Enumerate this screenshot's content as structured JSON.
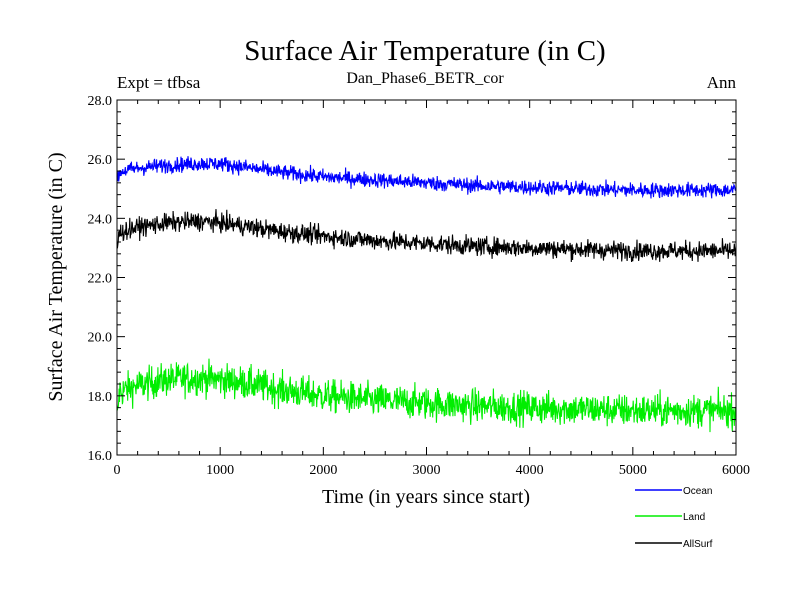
{
  "chart_data": {
    "type": "line",
    "title": "Surface Air Temperature (in C)",
    "subtitle": "Dan_Phase6_BETR_cor",
    "left_annotation": "Expt = tfbsa",
    "right_annotation": "Ann",
    "xlabel": "Time (in years since start)",
    "ylabel": "Surface Air Temperature (in C)",
    "xlim": [
      0,
      6000
    ],
    "ylim": [
      16.0,
      28.0
    ],
    "x_ticks": [
      0,
      1000,
      2000,
      3000,
      4000,
      5000,
      6000
    ],
    "x_tick_labels": [
      "0",
      "1000",
      "2000",
      "3000",
      "4000",
      "5000",
      "6000"
    ],
    "y_ticks": [
      16.0,
      18.0,
      20.0,
      22.0,
      24.0,
      26.0,
      28.0
    ],
    "y_tick_labels": [
      "16.0",
      "18.0",
      "20.0",
      "22.0",
      "24.0",
      "26.0",
      "28.0"
    ],
    "grid": false,
    "legend_position": "bottom-right",
    "noise_amplitude_note": "annual values with interannual variability around trend",
    "series": [
      {
        "name": "Ocean",
        "color": "#0000ff",
        "noise": 0.13,
        "trend_x": [
          0,
          200,
          500,
          800,
          1000,
          1300,
          1600,
          2000,
          2500,
          3000,
          3500,
          4000,
          4500,
          5000,
          5500,
          6000
        ],
        "trend_y": [
          25.55,
          25.7,
          25.8,
          25.85,
          25.85,
          25.7,
          25.55,
          25.4,
          25.3,
          25.2,
          25.1,
          25.05,
          25.0,
          24.95,
          24.95,
          24.95
        ]
      },
      {
        "name": "Land",
        "color": "#00ee00",
        "noise": 0.28,
        "trend_x": [
          0,
          200,
          500,
          800,
          1000,
          1300,
          1600,
          2000,
          2500,
          3000,
          3500,
          4000,
          4500,
          5000,
          5500,
          6000
        ],
        "trend_y": [
          18.1,
          18.35,
          18.55,
          18.6,
          18.55,
          18.4,
          18.2,
          18.0,
          17.85,
          17.75,
          17.65,
          17.6,
          17.55,
          17.5,
          17.5,
          17.5
        ]
      },
      {
        "name": "AllSurf",
        "color": "#000000",
        "noise": 0.16,
        "trend_x": [
          0,
          200,
          500,
          800,
          1000,
          1300,
          1600,
          2000,
          2500,
          3000,
          3500,
          4000,
          4500,
          5000,
          5500,
          6000
        ],
        "trend_y": [
          23.5,
          23.7,
          23.85,
          23.9,
          23.85,
          23.7,
          23.55,
          23.4,
          23.25,
          23.15,
          23.05,
          23.0,
          22.95,
          22.9,
          22.9,
          22.9
        ]
      }
    ]
  }
}
